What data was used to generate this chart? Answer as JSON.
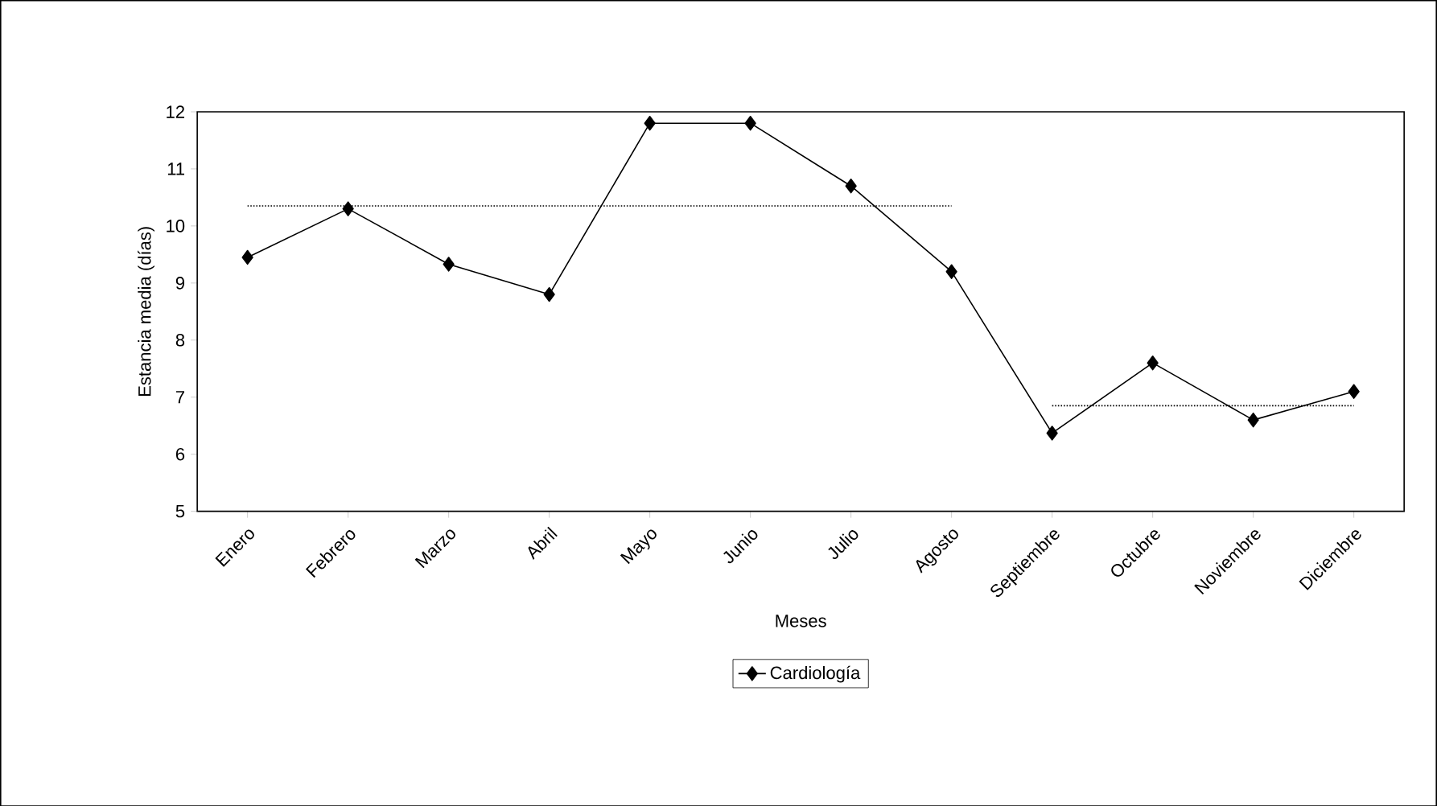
{
  "chart_data": {
    "type": "line",
    "xlabel": "Meses",
    "ylabel": "Estancia media (días)",
    "categories": [
      "Enero",
      "Febrero",
      "Marzo",
      "Abril",
      "Mayo",
      "Junio",
      "Julio",
      "Agosto",
      "Septiembre",
      "Octubre",
      "Noviembre",
      "Diciembre"
    ],
    "series": [
      {
        "name": "Cardiología",
        "color": "#000000",
        "marker": "diamond",
        "line_style": "solid",
        "values": [
          9.45,
          10.3,
          9.33,
          8.8,
          11.8,
          11.8,
          10.7,
          9.2,
          6.37,
          7.6,
          6.6,
          7.1
        ]
      },
      {
        "color": "#000000",
        "marker": "none",
        "line_style": "dotted",
        "values": [
          10.35,
          10.35,
          10.35,
          10.35,
          10.35,
          10.35,
          10.35,
          10.35,
          null,
          null,
          null,
          null
        ]
      },
      {
        "color": "#000000",
        "marker": "none",
        "line_style": "dotted",
        "values": [
          null,
          null,
          null,
          null,
          null,
          null,
          null,
          null,
          6.85,
          6.85,
          6.85,
          6.85
        ]
      }
    ],
    "ylim": [
      5,
      12
    ],
    "yticks": [
      5,
      6,
      7,
      8,
      9,
      10,
      11,
      12
    ],
    "grid": false,
    "legend": "bottom"
  }
}
